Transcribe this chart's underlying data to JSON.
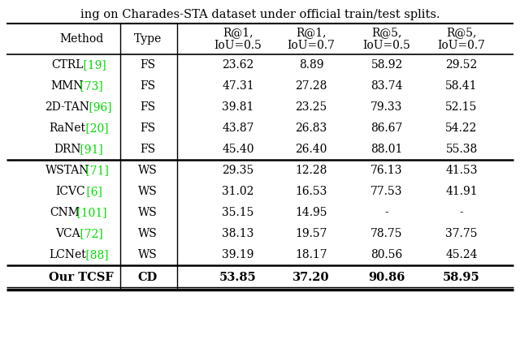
{
  "title": "ing on Charades-STA dataset under official train/test splits.",
  "col_headers": [
    "Method",
    "Type",
    "R@1,\nIoU=0.5",
    "R@1,\nIoU=0.7",
    "R@5,\nIoU=0.5",
    "R@5,\nIoU=0.7"
  ],
  "rows_fs": [
    {
      "method": "CTRL",
      "ref": " [19]",
      "type": "FS",
      "vals": [
        "23.62",
        "8.89",
        "58.92",
        "29.52"
      ]
    },
    {
      "method": "MMN",
      "ref": " [73]",
      "type": "FS",
      "vals": [
        "47.31",
        "27.28",
        "83.74",
        "58.41"
      ]
    },
    {
      "method": "2D-TAN",
      "ref": " [96]",
      "type": "FS",
      "vals": [
        "39.81",
        "23.25",
        "79.33",
        "52.15"
      ]
    },
    {
      "method": "RaNet",
      "ref": " [20]",
      "type": "FS",
      "vals": [
        "43.87",
        "26.83",
        "86.67",
        "54.22"
      ]
    },
    {
      "method": "DRN",
      "ref": " [91]",
      "type": "FS",
      "vals": [
        "45.40",
        "26.40",
        "88.01",
        "55.38"
      ]
    }
  ],
  "rows_ws": [
    {
      "method": "WSTAN",
      "ref": " [71]",
      "type": "WS",
      "vals": [
        "29.35",
        "12.28",
        "76.13",
        "41.53"
      ]
    },
    {
      "method": "ICVC",
      "ref": " [6]",
      "type": "WS",
      "vals": [
        "31.02",
        "16.53",
        "77.53",
        "41.91"
      ]
    },
    {
      "method": "CNM",
      "ref": " [101]",
      "type": "WS",
      "vals": [
        "35.15",
        "14.95",
        "-",
        "-"
      ]
    },
    {
      "method": "VCA",
      "ref": " [72]",
      "type": "WS",
      "vals": [
        "38.13",
        "19.57",
        "78.75",
        "37.75"
      ]
    },
    {
      "method": "LCNet",
      "ref": " [88]",
      "type": "WS",
      "vals": [
        "39.19",
        "18.17",
        "80.56",
        "45.24"
      ]
    }
  ],
  "last_row": {
    "method": "Our TCSF",
    "ref": "",
    "type": "CD",
    "vals": [
      "53.85",
      "37.20",
      "90.86",
      "58.95"
    ]
  },
  "green": "#00DD00",
  "black": "#000000",
  "white": "#FFFFFF",
  "fig_w": 6.4,
  "fig_h": 4.24,
  "dpi": 100
}
